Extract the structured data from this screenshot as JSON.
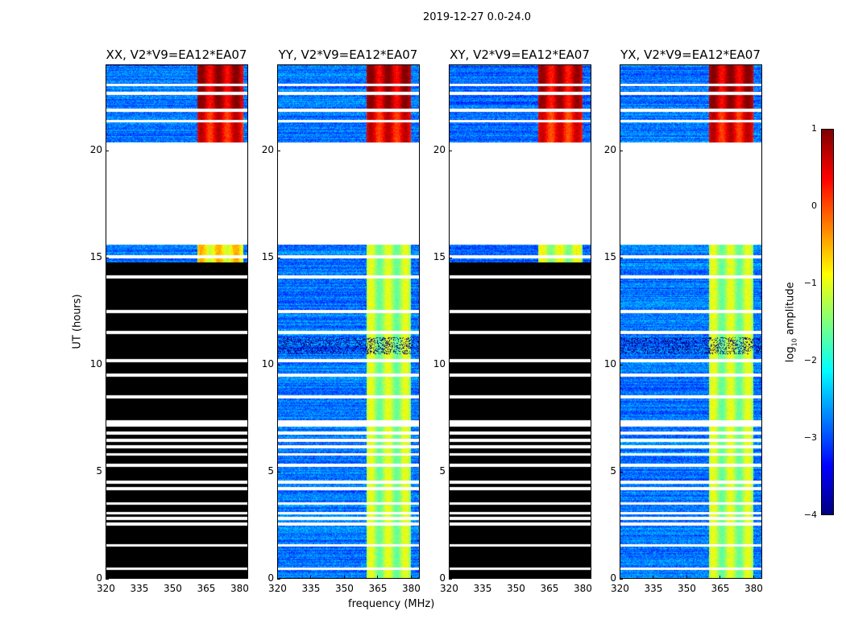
{
  "figure_title": "2019-12-27 0.0-24.0",
  "chart_data": {
    "type": "heatmap",
    "title": "2019-12-27 0.0-24.0",
    "xlabel": "frequency (MHz)",
    "ylabel": "UT (hours)",
    "xlim": [
      320,
      384
    ],
    "ylim": [
      0,
      24
    ],
    "xticks": [
      "320",
      "335",
      "350",
      "365",
      "380"
    ],
    "yticks": [
      "0",
      "5",
      "10",
      "15",
      "20"
    ],
    "colorbar": {
      "label_main": "log",
      "label_sub": "10",
      "label_rest": " amplitude",
      "range": [
        -4,
        1
      ],
      "ticks": [
        "1",
        "0",
        "−1",
        "−2",
        "−3",
        "−4"
      ],
      "tick_values": [
        1,
        0,
        -1,
        -2,
        -3,
        -4
      ],
      "colormap": "jet"
    },
    "panels": [
      {
        "title": "XX, V2*V9=EA12*EA07",
        "background_log_amp": -2.8,
        "band_mhz": [
          361,
          382
        ],
        "band_log_amp_low_ut": -0.8,
        "band_log_amp_high_ut": 0.4,
        "no_data_ut": [
          15.6,
          20.4
        ],
        "flagged_ut": [
          0,
          14.8
        ]
      },
      {
        "title": "YY, V2*V9=EA12*EA07",
        "background_log_amp": -2.8,
        "band_mhz": [
          360,
          380
        ],
        "band_log_amp_low_ut": -1.3,
        "band_log_amp_high_ut": 0.4,
        "no_data_ut": [
          15.6,
          20.4
        ],
        "flagged_ut": []
      },
      {
        "title": "XY, V2*V9=EA12*EA07",
        "background_log_amp": -2.9,
        "band_mhz": [
          360,
          380
        ],
        "band_log_amp_low_ut": -1.2,
        "band_log_amp_high_ut": 0.3,
        "no_data_ut": [
          15.6,
          20.4
        ],
        "flagged_ut": [
          0,
          14.8
        ]
      },
      {
        "title": "YX, V2*V9=EA12*EA07",
        "background_log_amp": -2.8,
        "band_mhz": [
          360,
          380
        ],
        "band_log_amp_low_ut": -1.3,
        "band_log_amp_high_ut": 0.4,
        "no_data_ut": [
          15.6,
          20.4
        ],
        "flagged_ut": []
      }
    ],
    "gap_lines_ut": [
      0.45,
      1.55,
      2.55,
      2.8,
      3.05,
      3.5,
      4.2,
      4.5,
      5.3,
      5.8,
      6.15,
      6.45,
      6.8,
      7.25,
      8.5,
      9.5,
      10.2,
      11.5,
      12.5,
      14.1,
      15.05,
      21.4,
      21.9,
      22.7,
      23.1
    ]
  }
}
